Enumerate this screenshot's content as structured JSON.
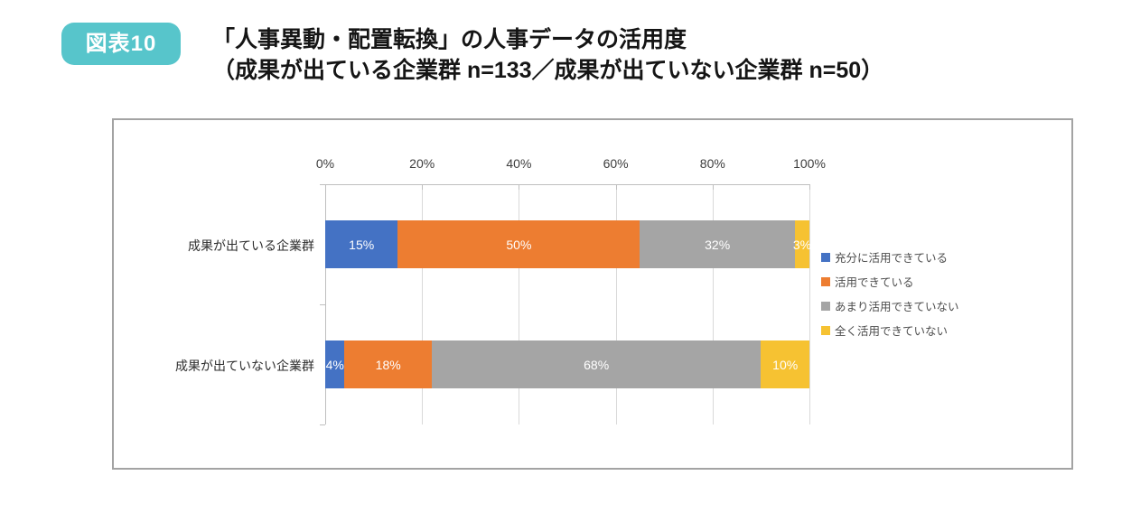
{
  "figure": {
    "badge": "図表10",
    "title_line1": "「人事異動・配置転換」の人事データの活用度",
    "title_line2": "（成果が出ている企業群 n=133／成果が出ていない企業群 n=50）"
  },
  "colors": {
    "badge_bg": "#57c5cb",
    "chart_border": "#a3a3a3",
    "gridline": "#d9d9d9",
    "axis": "#bfbfbf",
    "data_label": "#ffffff"
  },
  "chart_data": {
    "type": "bar",
    "orientation": "horizontal",
    "stacked": true,
    "unit": "%",
    "categories": [
      "成果が出ている企業群",
      "成果が出ていない企業群"
    ],
    "series": [
      {
        "name": "充分に活用できている",
        "color": "#4472c4",
        "values": [
          15,
          4
        ]
      },
      {
        "name": "活用できている",
        "color": "#ed7d31",
        "values": [
          50,
          18
        ]
      },
      {
        "name": "あまり活用できていない",
        "color": "#a5a5a5",
        "values": [
          32,
          68
        ]
      },
      {
        "name": "全く活用できていない",
        "color": "#f6c232",
        "values": [
          3,
          10
        ]
      }
    ],
    "x_axis": {
      "min": 0,
      "max": 100,
      "ticks": [
        "0%",
        "20%",
        "40%",
        "60%",
        "80%",
        "100%"
      ]
    },
    "data_labels": [
      [
        "15%",
        "50%",
        "32%",
        "3%"
      ],
      [
        "4%",
        "18%",
        "68%",
        "10%"
      ]
    ],
    "legend_position": "right",
    "grid": true
  }
}
